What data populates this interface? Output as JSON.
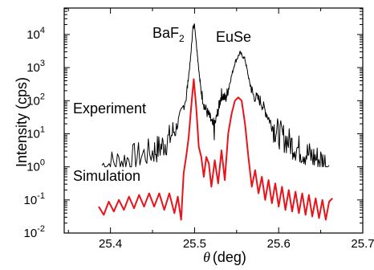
{
  "chart_data": {
    "type": "line",
    "xlabel": {
      "symbol": "θ",
      "unit": "(deg)"
    },
    "ylabel": "Intensity (cps)",
    "xlim": [
      25.345,
      25.7
    ],
    "ylim_log10": [
      -2,
      4.8
    ],
    "yscale": "log",
    "xticks": [
      "25.4",
      "25.5",
      "25.6",
      "25.7"
    ],
    "xtick_values": [
      25.4,
      25.5,
      25.6,
      25.7
    ],
    "ytick_exponents": [
      -2,
      -1,
      0,
      1,
      2,
      3,
      4
    ],
    "ytick_base": "10",
    "annotations": {
      "baf2": {
        "main": "BaF",
        "sub": "2"
      },
      "euse": "EuSe",
      "experiment": "Experiment",
      "simulation": "Simulation"
    },
    "series": [
      {
        "name": "Experiment",
        "color": "#000000",
        "x": [
          25.39,
          25.41,
          25.43,
          25.45,
          25.46,
          25.47,
          25.48,
          25.49,
          25.495,
          25.498,
          25.5,
          25.503,
          25.507,
          25.512,
          25.518,
          25.523,
          25.528,
          25.532,
          25.537,
          25.542,
          25.548,
          25.554,
          25.56,
          25.565,
          25.57,
          25.578,
          25.585,
          25.592,
          25.6,
          25.61,
          25.62,
          25.63,
          25.64,
          25.65,
          25.66
        ],
        "log10": [
          0.05,
          0.15,
          0.3,
          0.45,
          0.6,
          0.85,
          1.3,
          2.1,
          3.2,
          4.2,
          4.3,
          3.5,
          2.4,
          1.8,
          1.5,
          1.15,
          1.7,
          2.2,
          2.05,
          2.55,
          3.15,
          3.45,
          3.25,
          2.6,
          2.15,
          2.0,
          1.65,
          1.25,
          1.0,
          0.8,
          0.6,
          0.45,
          0.3,
          0.2,
          0.05
        ]
      },
      {
        "name": "Simulation",
        "color": "#e8141b",
        "x": [
          25.386,
          25.392,
          25.398,
          25.404,
          25.41,
          25.416,
          25.422,
          25.428,
          25.434,
          25.44,
          25.446,
          25.452,
          25.458,
          25.464,
          25.47,
          25.476,
          25.48,
          25.484,
          25.487,
          25.49,
          25.493,
          25.496,
          25.499,
          25.502,
          25.505,
          25.508,
          25.511,
          25.514,
          25.517,
          25.52,
          25.524,
          25.528,
          25.532,
          25.536,
          25.54,
          25.544,
          25.548,
          25.552,
          25.556,
          25.56,
          25.564,
          25.568,
          25.572,
          25.576,
          25.58,
          25.584,
          25.588,
          25.592,
          25.596,
          25.6,
          25.604,
          25.608,
          25.612,
          25.616,
          25.62,
          25.624,
          25.628,
          25.632,
          25.636,
          25.64,
          25.644,
          25.648,
          25.652,
          25.656,
          25.66,
          25.664
        ],
        "log10": [
          -1.2,
          -1.45,
          -1.05,
          -1.35,
          -1.0,
          -1.3,
          -0.9,
          -1.25,
          -0.85,
          -1.2,
          -0.8,
          -1.2,
          -0.8,
          -1.3,
          -0.8,
          -1.4,
          -0.9,
          -1.6,
          -0.2,
          0.3,
          0.9,
          1.8,
          2.65,
          1.8,
          0.6,
          0.3,
          -0.3,
          0.3,
          0.1,
          -0.6,
          0.2,
          -0.5,
          0.5,
          -0.4,
          1.0,
          1.6,
          2.0,
          2.1,
          2.0,
          1.3,
          0.3,
          -0.6,
          -0.1,
          -0.8,
          -0.3,
          -1.0,
          -0.4,
          -1.1,
          -0.5,
          -1.2,
          -0.6,
          -1.3,
          -0.7,
          -1.35,
          -0.75,
          -1.4,
          -0.8,
          -1.45,
          -0.85,
          -1.5,
          -0.95,
          -1.55,
          -1.0,
          -1.6,
          -1.05,
          -0.95
        ]
      }
    ]
  }
}
